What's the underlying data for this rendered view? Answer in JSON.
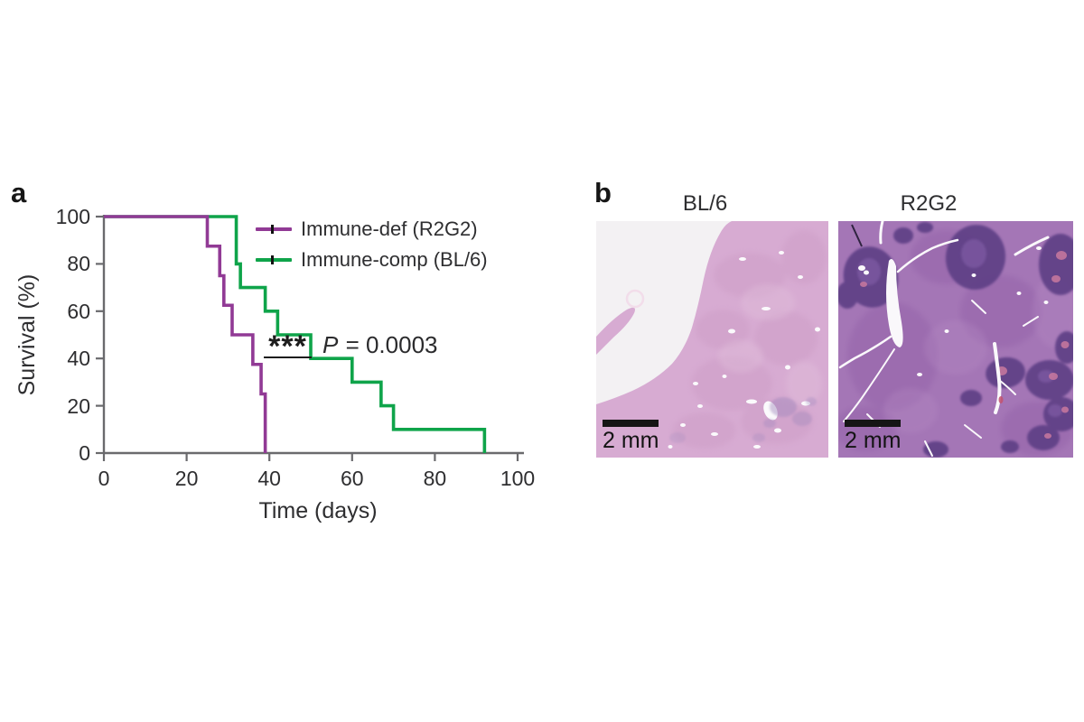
{
  "panels": {
    "a": "a",
    "b": "b"
  },
  "chart_data": {
    "type": "line",
    "subtype": "kaplan-meier-step",
    "title": "",
    "xlabel": "Time (days)",
    "ylabel": "Survival (%)",
    "xlim": [
      0,
      100
    ],
    "ylim": [
      0,
      100
    ],
    "xticks": [
      0,
      20,
      40,
      60,
      80,
      100
    ],
    "yticks": [
      0,
      20,
      40,
      60,
      80,
      100
    ],
    "grid": false,
    "legend_position": "inside-top-right",
    "series": [
      {
        "name": "Immune-def (R2G2)",
        "color": "#913a95",
        "x": [
          0,
          25,
          28,
          29,
          31,
          36,
          38,
          39
        ],
        "survival": [
          100,
          87.5,
          75,
          62.5,
          50,
          37.5,
          25,
          0
        ]
      },
      {
        "name": "Immune-comp (BL/6)",
        "color": "#0fa44a",
        "x": [
          0,
          32,
          33,
          39,
          42,
          50,
          60,
          67,
          70,
          92
        ],
        "survival": [
          100,
          80,
          70,
          60,
          50,
          40,
          30,
          20,
          10,
          0
        ]
      }
    ],
    "annotations": {
      "significance_stars": "***",
      "p_symbol": "P",
      "p_rest": " = 0.0003"
    }
  },
  "panel_b": {
    "images": [
      {
        "title": "BL/6",
        "scale_bar_label": "2 mm"
      },
      {
        "title": "R2G2",
        "scale_bar_label": "2 mm"
      }
    ]
  },
  "colors": {
    "text": "#2e2e30",
    "axis": "#6a6a6d",
    "scale_bar": "#151515",
    "bl6_background": "#f3f1f3",
    "bl6_tissue": "#d7abd2",
    "bl6_mottle": "#c795c0",
    "bl6_light": "#e3c2dd",
    "bl6_hole": "#fbfafc",
    "bl6_spot": "#9f87bc",
    "r2g2_base": "#a476b6",
    "r2g2_mottle_dark": "#8e5ca4",
    "r2g2_mottle_light": "#b78cc5",
    "r2g2_nodule": "#5e4186",
    "r2g2_nodule_light": "#7b58a1",
    "r2g2_pink": "#c9799f",
    "r2g2_white": "#faf8fb",
    "r2g2_slit": "#2f2340",
    "r2g2_red_fleck": "#c4526e"
  }
}
